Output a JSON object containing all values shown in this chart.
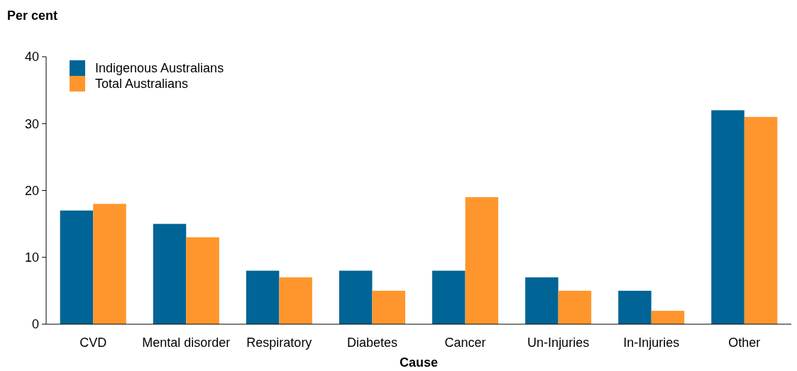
{
  "chart_data": {
    "type": "bar",
    "xlabel": "Cause",
    "ylabel": "Per cent",
    "categories": [
      "CVD",
      "Mental disorder",
      "Respiratory",
      "Diabetes",
      "Cancer",
      "Un-Injuries",
      "In-Injuries",
      "Other"
    ],
    "series": [
      {
        "name": "Indigenous Australians",
        "color": "#006496",
        "values": [
          17,
          15,
          8,
          8,
          8,
          7,
          5,
          32
        ]
      },
      {
        "name": "Total Australians",
        "color": "#ff962d",
        "values": [
          18,
          13,
          7,
          5,
          19,
          5,
          2,
          31
        ]
      }
    ],
    "ylim": [
      0,
      40
    ],
    "yticks": [
      0,
      10,
      20,
      30,
      40
    ],
    "grid": false,
    "legend": "top left"
  }
}
